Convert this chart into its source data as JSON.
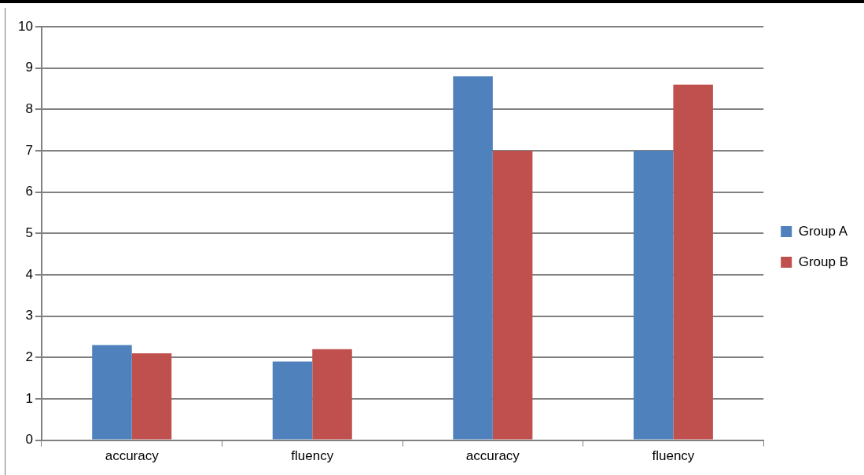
{
  "chart_data": {
    "type": "bar",
    "categories": [
      "accuracy",
      "fluency",
      "accuracy",
      "fluency"
    ],
    "series": [
      {
        "name": "Group A",
        "color": "#4f81bd",
        "values": [
          2.3,
          1.9,
          8.8,
          7.0
        ]
      },
      {
        "name": "Group B",
        "color": "#c0504d",
        "values": [
          2.1,
          2.2,
          7.0,
          8.6
        ]
      }
    ],
    "ylim": [
      0,
      10
    ],
    "yticks": [
      0,
      1,
      2,
      3,
      4,
      5,
      6,
      7,
      8,
      9,
      10
    ],
    "grid": "y",
    "legend": "right"
  }
}
